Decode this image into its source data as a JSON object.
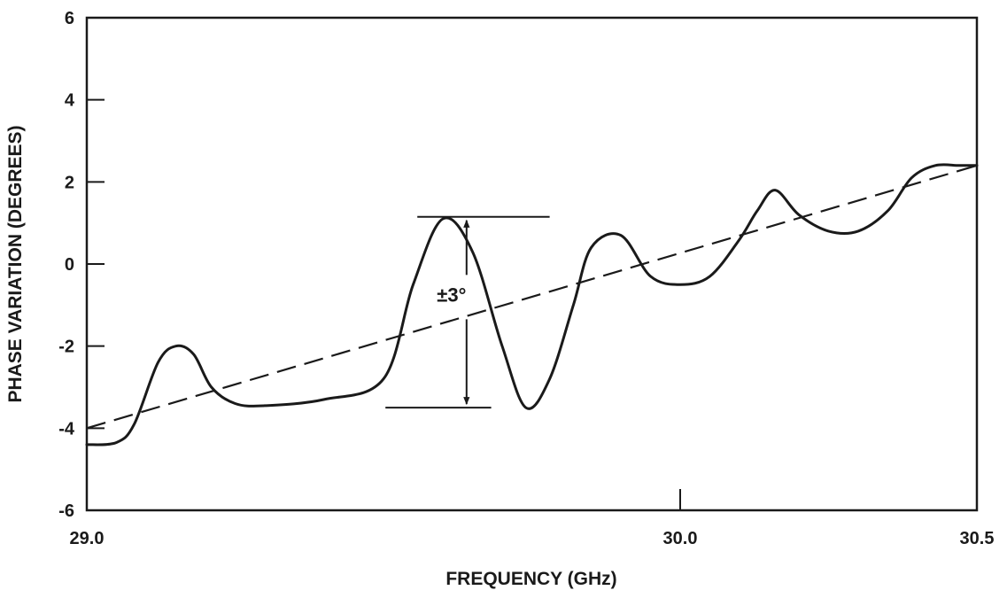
{
  "chart_data": {
    "type": "line",
    "title": "",
    "xlabel": "FREQUENCY (GHz)",
    "ylabel": "PHASE VARIATION (DEGREES)",
    "xlim": [
      29.0,
      30.5
    ],
    "ylim": [
      -6,
      6
    ],
    "x_ticks": [
      {
        "value": 29.0,
        "label": "29.0"
      },
      {
        "value": 30.0,
        "label": "30.0"
      },
      {
        "value": 30.5,
        "label": "30.5"
      }
    ],
    "y_ticks": [
      {
        "value": 6,
        "label": "6"
      },
      {
        "value": 4,
        "label": "4"
      },
      {
        "value": 2,
        "label": "2"
      },
      {
        "value": 0,
        "label": "0"
      },
      {
        "value": -2,
        "label": "-2"
      },
      {
        "value": -4,
        "label": "-4"
      },
      {
        "value": -6,
        "label": "-6"
      }
    ],
    "grid": false,
    "series": [
      {
        "style": "solid",
        "color": "#1a1a1a",
        "x": [
          29.0,
          29.05,
          29.08,
          29.12,
          29.15,
          29.18,
          29.21,
          29.25,
          29.3,
          29.4,
          29.5,
          29.55,
          29.6,
          29.65,
          29.7,
          29.74,
          29.78,
          29.82,
          29.85,
          29.9,
          29.95,
          30.0,
          30.05,
          30.1,
          30.13,
          30.16,
          30.2,
          30.25,
          30.3,
          30.35,
          30.39,
          30.43,
          30.47,
          30.5
        ],
        "y": [
          -4.4,
          -4.35,
          -3.9,
          -2.4,
          -2.0,
          -2.2,
          -3.0,
          -3.4,
          -3.45,
          -3.3,
          -2.8,
          -0.5,
          1.1,
          0.3,
          -2.0,
          -3.5,
          -2.8,
          -1.0,
          0.4,
          0.7,
          -0.3,
          -0.5,
          -0.3,
          0.6,
          1.3,
          1.8,
          1.2,
          0.8,
          0.8,
          1.3,
          2.1,
          2.4,
          2.4,
          2.4
        ]
      },
      {
        "style": "dashed",
        "color": "#1a1a1a",
        "x": [
          29.0,
          30.5
        ],
        "y": [
          -4.0,
          2.4
        ]
      }
    ],
    "annotations": [
      {
        "text": "±3°",
        "type": "range-arrow",
        "x_start": 29.56,
        "x_end": 29.78,
        "arrow_x": 29.64,
        "y_top": 1.15,
        "y_bottom": -3.5,
        "label_x": 29.59,
        "label_y": -1.0
      }
    ]
  }
}
